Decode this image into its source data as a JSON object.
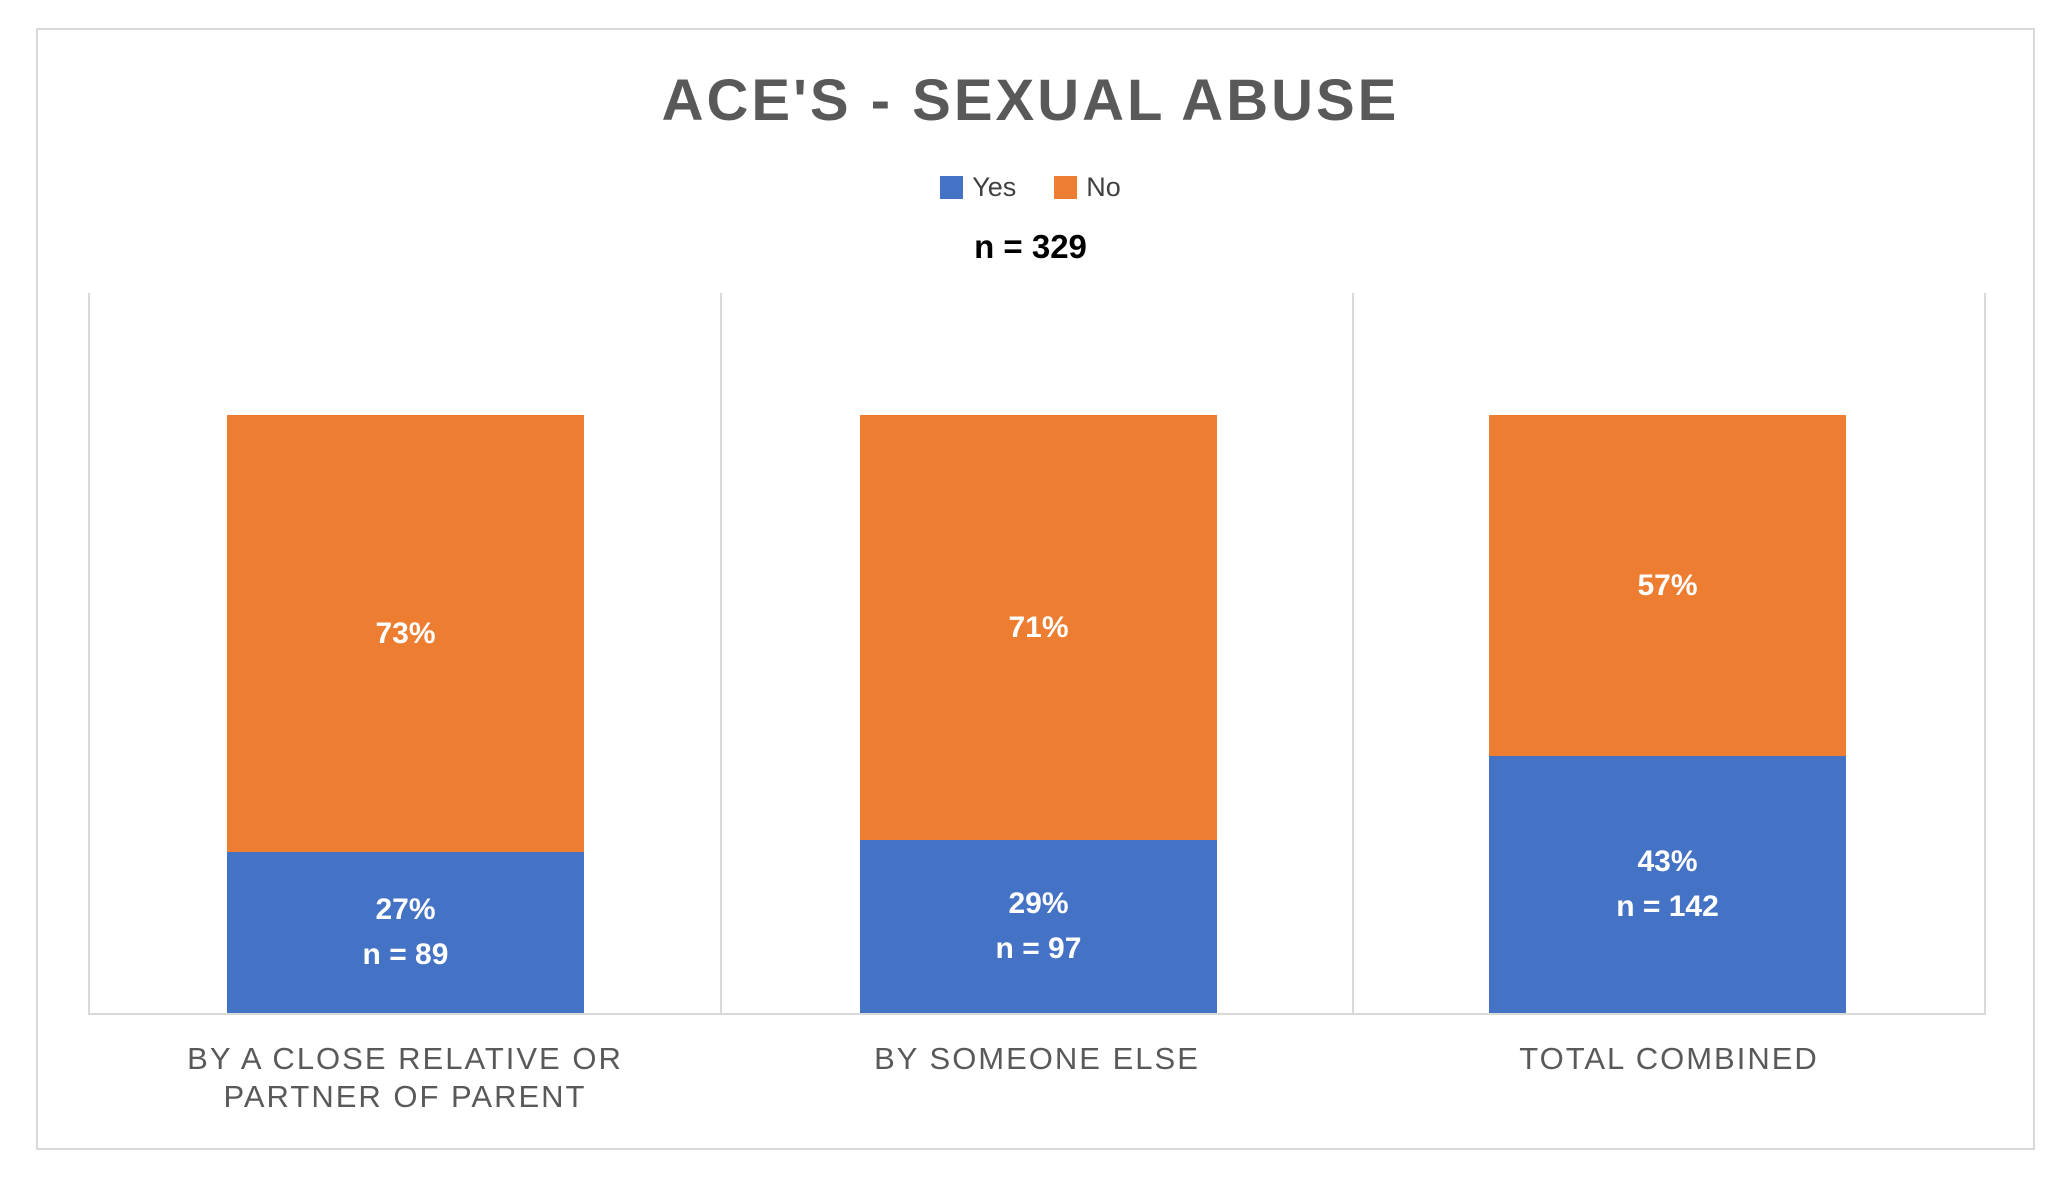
{
  "colors": {
    "yes": "#4472C4",
    "no": "#ED7D31",
    "title_text": "#595959",
    "category_text": "#595959",
    "legend_text": "#404040",
    "n_text": "#000000",
    "grid_line": "#D9D9D9",
    "frame_border": "#D9D9D9",
    "bar_label_text": "#FFFFFF"
  },
  "chart_data": {
    "type": "bar",
    "subtype": "stacked-100-percent-column",
    "title": "ACE'S - SEXUAL ABUSE",
    "sample_size_label": "n = 329",
    "sample_size": 329,
    "legend_position": "top",
    "grid": "vertical category separator lines only",
    "xlabel": "",
    "ylabel": "",
    "categories": [
      "BY A CLOSE RELATIVE OR PARTNER OF PARENT",
      "BY SOMEONE ELSE",
      "TOTAL COMBINED"
    ],
    "series": [
      {
        "name": "Yes",
        "color": "#4472C4",
        "values_pct": [
          27,
          29,
          43
        ],
        "counts": [
          89,
          97,
          142
        ]
      },
      {
        "name": "No",
        "color": "#ED7D31",
        "values_pct": [
          73,
          71,
          57
        ]
      }
    ],
    "columns": [
      {
        "category_lines": [
          "BY A CLOSE RELATIVE OR",
          "PARTNER OF PARENT"
        ],
        "yes_pct": 27,
        "no_pct": 73,
        "no_label": "73%",
        "yes_label": "27%",
        "yes_n_label": "n = 89"
      },
      {
        "category_lines": [
          "BY SOMEONE ELSE"
        ],
        "yes_pct": 29,
        "no_pct": 71,
        "no_label": "71%",
        "yes_label": "29%",
        "yes_n_label": "n = 97"
      },
      {
        "category_lines": [
          "TOTAL COMBINED"
        ],
        "yes_pct": 43,
        "no_pct": 57,
        "no_label": "57%",
        "yes_label": "43%",
        "yes_n_label": "n = 142"
      }
    ]
  }
}
